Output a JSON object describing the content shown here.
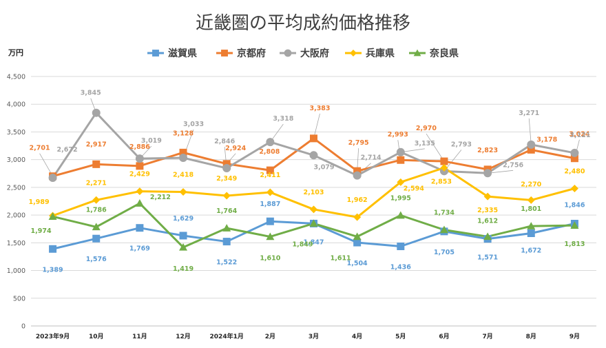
{
  "chart_data": {
    "type": "line",
    "title": "近畿圏の平均成約価格推移",
    "ylabel": "万円",
    "xlabel": "",
    "ylim": [
      0,
      4500
    ],
    "ytick_step": 500,
    "yticks": [
      "0",
      "500",
      "1,000",
      "1,500",
      "2,000",
      "2,500",
      "3,000",
      "3,500",
      "4,000",
      "4,500"
    ],
    "grid": true,
    "legend_position": "top",
    "categories": [
      "2023年9月",
      "10月",
      "11月",
      "12月",
      "2024年1月",
      "2月",
      "3月",
      "4月",
      "5月",
      "6月",
      "7月",
      "8月",
      "9月"
    ],
    "series": [
      {
        "name": "滋賀県",
        "color": "#5B9BD5",
        "marker": "square",
        "values": [
          1389,
          1576,
          1769,
          1629,
          1522,
          1887,
          1847,
          1504,
          1436,
          1705,
          1571,
          1672,
          1846
        ],
        "labels": [
          "1,389",
          "1,576",
          "1,769",
          "1,629",
          "1,522",
          "1,887",
          "1,847",
          "1,504",
          "1,436",
          "1,705",
          "1,571",
          "1,672",
          "1,846"
        ]
      },
      {
        "name": "京都府",
        "color": "#ED7D31",
        "marker": "square",
        "values": [
          2701,
          2917,
          2886,
          3128,
          2924,
          2808,
          3383,
          2795,
          2993,
          2970,
          2823,
          3178,
          3024
        ],
        "labels": [
          "2,701",
          "2,917",
          "2,886",
          "3,128",
          "2,924",
          "2,808",
          "3,383",
          "2,795",
          "2,993",
          "2,970",
          "2,823",
          "3,178",
          "3,024"
        ]
      },
      {
        "name": "大阪府",
        "color": "#A5A5A5",
        "marker": "circle",
        "values": [
          2672,
          3845,
          3019,
          3033,
          2846,
          3318,
          3079,
          2714,
          3135,
          2793,
          2756,
          3271,
          3121
        ],
        "labels": [
          "2,672",
          "3,845",
          "3,019",
          "3,033",
          "2,846",
          "3,318",
          "3,079",
          "2,714",
          "3,135",
          "2,793",
          "2,756",
          "3,271",
          "3,121"
        ]
      },
      {
        "name": "兵庫県",
        "color": "#FFC000",
        "marker": "diamond",
        "values": [
          1989,
          2271,
          2429,
          2418,
          2349,
          2411,
          2103,
          1962,
          2594,
          2853,
          2335,
          2270,
          2480
        ],
        "labels": [
          "1,989",
          "2,271",
          "2,429",
          "2,418",
          "2,349",
          "2,411",
          "2,103",
          "1,962",
          "2,594",
          "2,853",
          "2,335",
          "2,270",
          "2,480"
        ]
      },
      {
        "name": "奈良県",
        "color": "#70AD47",
        "marker": "triangle",
        "values": [
          1974,
          1786,
          2212,
          1419,
          1764,
          1610,
          1849,
          1611,
          1995,
          1734,
          1612,
          1801,
          1813
        ],
        "labels": [
          "1,974",
          "1,786",
          "2,212",
          "1,419",
          "1,764",
          "1,610",
          "1,849",
          "1,611",
          "1,995",
          "1,734",
          "1,612",
          "1,801",
          "1,813"
        ]
      }
    ]
  }
}
